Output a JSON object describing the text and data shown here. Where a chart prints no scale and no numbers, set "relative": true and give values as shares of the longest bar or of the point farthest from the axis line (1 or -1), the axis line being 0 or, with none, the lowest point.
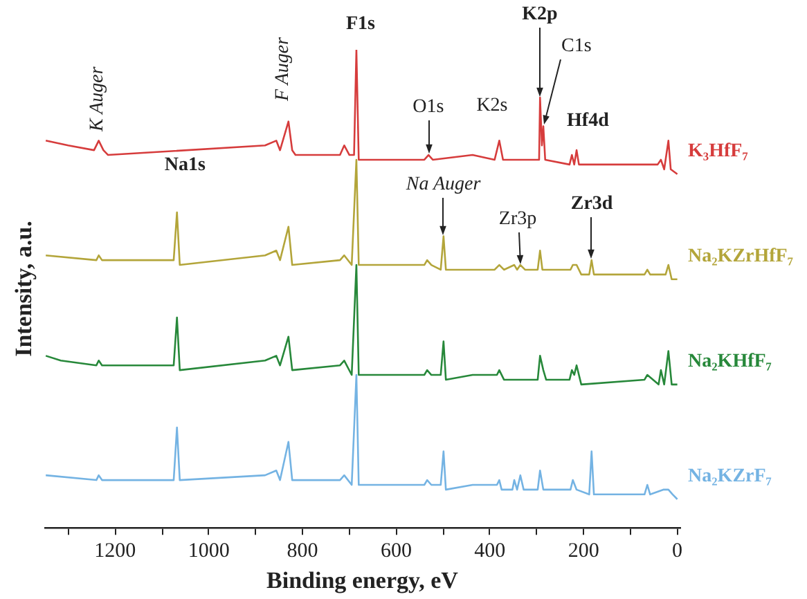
{
  "chart_data": {
    "type": "line",
    "relative": true,
    "xlabel": "Binding energy, eV",
    "ylabel": "Intensity, a.u.",
    "xlim": [
      1350,
      -5
    ],
    "xticks": [
      {
        "value": 1300,
        "label": null
      },
      1200,
      {
        "value": 1100,
        "label": null
      },
      1000,
      {
        "value": 900,
        "label": null
      },
      800,
      {
        "value": 700,
        "label": null
      },
      600,
      {
        "value": 500,
        "label": null
      },
      400,
      {
        "value": 300,
        "label": null
      },
      200,
      {
        "value": 100,
        "label": null
      },
      0
    ],
    "grid": false,
    "legend": false,
    "marker": "none",
    "line_style": "solid",
    "series": [
      {
        "name": "K₃HfF₇",
        "color": "#d63c3c",
        "x": [
          1348,
          1300,
          1245,
          1235,
          1225,
          1215,
          880,
          856,
          848,
          830,
          822,
          815,
          720,
          711,
          700,
          690,
          685,
          680,
          598,
          540,
          531,
          522,
          437,
          390,
          380,
          372,
          300,
          295,
          293,
          289,
          286,
          282,
          230,
          225,
          220,
          215,
          210,
          42,
          35,
          28,
          19,
          14,
          0
        ],
        "values": [
          0.81,
          0.8,
          0.79,
          0.81,
          0.79,
          0.78,
          0.8,
          0.81,
          0.79,
          0.85,
          0.79,
          0.78,
          0.78,
          0.8,
          0.78,
          0.78,
          1.0,
          0.77,
          0.77,
          0.77,
          0.78,
          0.77,
          0.78,
          0.77,
          0.81,
          0.77,
          0.77,
          0.77,
          0.9,
          0.8,
          0.84,
          0.77,
          0.76,
          0.78,
          0.76,
          0.79,
          0.76,
          0.76,
          0.77,
          0.75,
          0.81,
          0.75,
          0.74
        ]
      },
      {
        "name": "Na₂KZrHfF₇",
        "color": "#b3a53a",
        "x": [
          1348,
          1240,
          1235,
          1228,
          1075,
          1068,
          1062,
          880,
          856,
          848,
          830,
          822,
          720,
          711,
          695,
          685,
          680,
          598,
          540,
          534,
          525,
          505,
          499,
          494,
          390,
          380,
          370,
          348,
          342,
          335,
          325,
          298,
          293,
          288,
          228,
          223,
          215,
          205,
          188,
          183,
          178,
          70,
          64,
          58,
          25,
          19,
          12,
          0
        ],
        "values": [
          0.57,
          0.56,
          0.57,
          0.56,
          0.56,
          0.66,
          0.55,
          0.57,
          0.58,
          0.56,
          0.63,
          0.55,
          0.56,
          0.57,
          0.55,
          0.77,
          0.55,
          0.55,
          0.55,
          0.56,
          0.55,
          0.54,
          0.61,
          0.54,
          0.54,
          0.55,
          0.54,
          0.55,
          0.54,
          0.55,
          0.54,
          0.54,
          0.58,
          0.54,
          0.54,
          0.55,
          0.55,
          0.53,
          0.53,
          0.56,
          0.53,
          0.53,
          0.54,
          0.53,
          0.53,
          0.55,
          0.52,
          0.52
        ]
      },
      {
        "name": "Na₂KHfF₇",
        "color": "#27883a",
        "x": [
          1348,
          1316,
          1240,
          1235,
          1228,
          1075,
          1068,
          1062,
          880,
          856,
          848,
          830,
          822,
          720,
          711,
          695,
          685,
          680,
          598,
          540,
          534,
          525,
          505,
          499,
          494,
          437,
          385,
          380,
          370,
          298,
          293,
          286,
          280,
          230,
          225,
          220,
          215,
          205,
          70,
          64,
          40,
          35,
          28,
          19,
          12,
          0
        ],
        "values": [
          0.36,
          0.35,
          0.34,
          0.35,
          0.34,
          0.34,
          0.44,
          0.33,
          0.35,
          0.36,
          0.34,
          0.4,
          0.33,
          0.34,
          0.35,
          0.32,
          0.55,
          0.32,
          0.32,
          0.32,
          0.33,
          0.32,
          0.32,
          0.39,
          0.31,
          0.32,
          0.32,
          0.33,
          0.31,
          0.31,
          0.36,
          0.33,
          0.31,
          0.31,
          0.33,
          0.32,
          0.34,
          0.3,
          0.31,
          0.32,
          0.3,
          0.33,
          0.3,
          0.37,
          0.3,
          0.3
        ]
      },
      {
        "name": "Na₂KZrF₇",
        "color": "#74b3e3",
        "x": [
          1348,
          1240,
          1235,
          1228,
          1075,
          1068,
          1062,
          880,
          856,
          848,
          830,
          822,
          720,
          711,
          695,
          685,
          680,
          598,
          540,
          534,
          525,
          505,
          499,
          494,
          437,
          385,
          380,
          375,
          352,
          348,
          342,
          335,
          328,
          298,
          293,
          286,
          228,
          223,
          215,
          188,
          183,
          178,
          70,
          64,
          58,
          30,
          19,
          10,
          0
        ],
        "values": [
          0.11,
          0.1,
          0.11,
          0.1,
          0.1,
          0.21,
          0.1,
          0.11,
          0.12,
          0.1,
          0.18,
          0.1,
          0.1,
          0.11,
          0.09,
          0.32,
          0.09,
          0.09,
          0.09,
          0.1,
          0.09,
          0.09,
          0.16,
          0.08,
          0.09,
          0.09,
          0.1,
          0.08,
          0.08,
          0.1,
          0.08,
          0.11,
          0.08,
          0.08,
          0.12,
          0.08,
          0.08,
          0.1,
          0.08,
          0.07,
          0.16,
          0.07,
          0.07,
          0.09,
          0.07,
          0.08,
          0.08,
          0.07,
          0.06
        ]
      }
    ],
    "annotations": [
      {
        "text": "K Auger",
        "x": 1235,
        "y": 0.81
      },
      {
        "text": "F Auger",
        "x": 830,
        "y": 0.85
      },
      {
        "text": "F1s",
        "x": 685,
        "y": 1.0
      },
      {
        "text": "O1s",
        "x": 531,
        "y": 0.78
      },
      {
        "text": "K2s",
        "x": 380,
        "y": 0.81
      },
      {
        "text": "K2p",
        "x": 293,
        "y": 0.9
      },
      {
        "text": "C1s",
        "x": 286,
        "y": 0.84
      },
      {
        "text": "Hf4d",
        "x": 215,
        "y": 0.79
      },
      {
        "text": "Na1s",
        "x": 1068,
        "y": 0.66
      },
      {
        "text": "Na Auger",
        "x": 499,
        "y": 0.61
      },
      {
        "text": "Zr3p",
        "x": 335,
        "y": 0.55
      },
      {
        "text": "Zr3d",
        "x": 183,
        "y": 0.56
      }
    ]
  }
}
